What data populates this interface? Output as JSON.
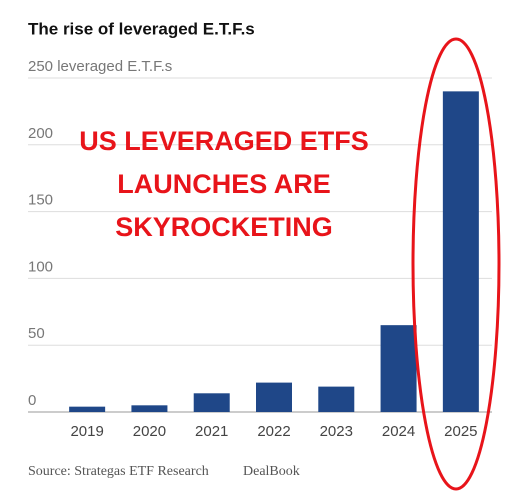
{
  "chart_data": {
    "type": "bar",
    "title": "The rise of leveraged E.T.F.s",
    "categories": [
      "2019",
      "2020",
      "2021",
      "2022",
      "2023",
      "2024",
      "2025"
    ],
    "values": [
      4,
      5,
      14,
      22,
      19,
      65,
      240
    ],
    "color": "#1f4788",
    "ylim": [
      0,
      250
    ],
    "yticks": [
      0,
      50,
      100,
      150,
      200,
      {
        "value": 250,
        "label": "250 leveraged E.T.F.s"
      }
    ],
    "grid": true,
    "annotation": [
      "US LEVERAGED ETFS",
      "LAUNCHES ARE",
      "SKYROCKETING"
    ],
    "source": "Source: Strategas ETF Research",
    "credit": "DealBook"
  }
}
